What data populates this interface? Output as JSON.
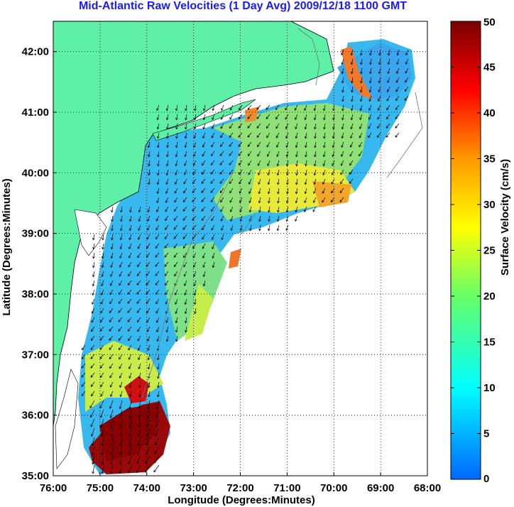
{
  "title": "Mid-Atlantic Raw Velocities (1 Day Avg) 2009/12/18 1100 GMT",
  "map": {
    "xlabel": "Longitude (Degrees:Minutes)",
    "ylabel": "Latitude (Degrees:Minutes)",
    "x_ticks": [
      "76:00",
      "75:00",
      "74:00",
      "73:00",
      "72:00",
      "71:00",
      "70:00",
      "69:00",
      "68:00"
    ],
    "y_ticks": [
      "42:00",
      "41:00",
      "40:00",
      "39:00",
      "38:00",
      "37:00",
      "36:00",
      "35:00"
    ],
    "lon_range": [
      -76,
      -68
    ],
    "lat_range": [
      35,
      42.5
    ],
    "grid": "dotted",
    "land_color": "#5ff0a8"
  },
  "colorbar": {
    "label": "Surface Velocity (cm/s)",
    "ticks": [
      "50",
      "45",
      "40",
      "35",
      "30",
      "25",
      "20",
      "15",
      "10",
      "5",
      "0"
    ],
    "range": [
      0,
      50
    ],
    "colormap": "jet"
  }
}
